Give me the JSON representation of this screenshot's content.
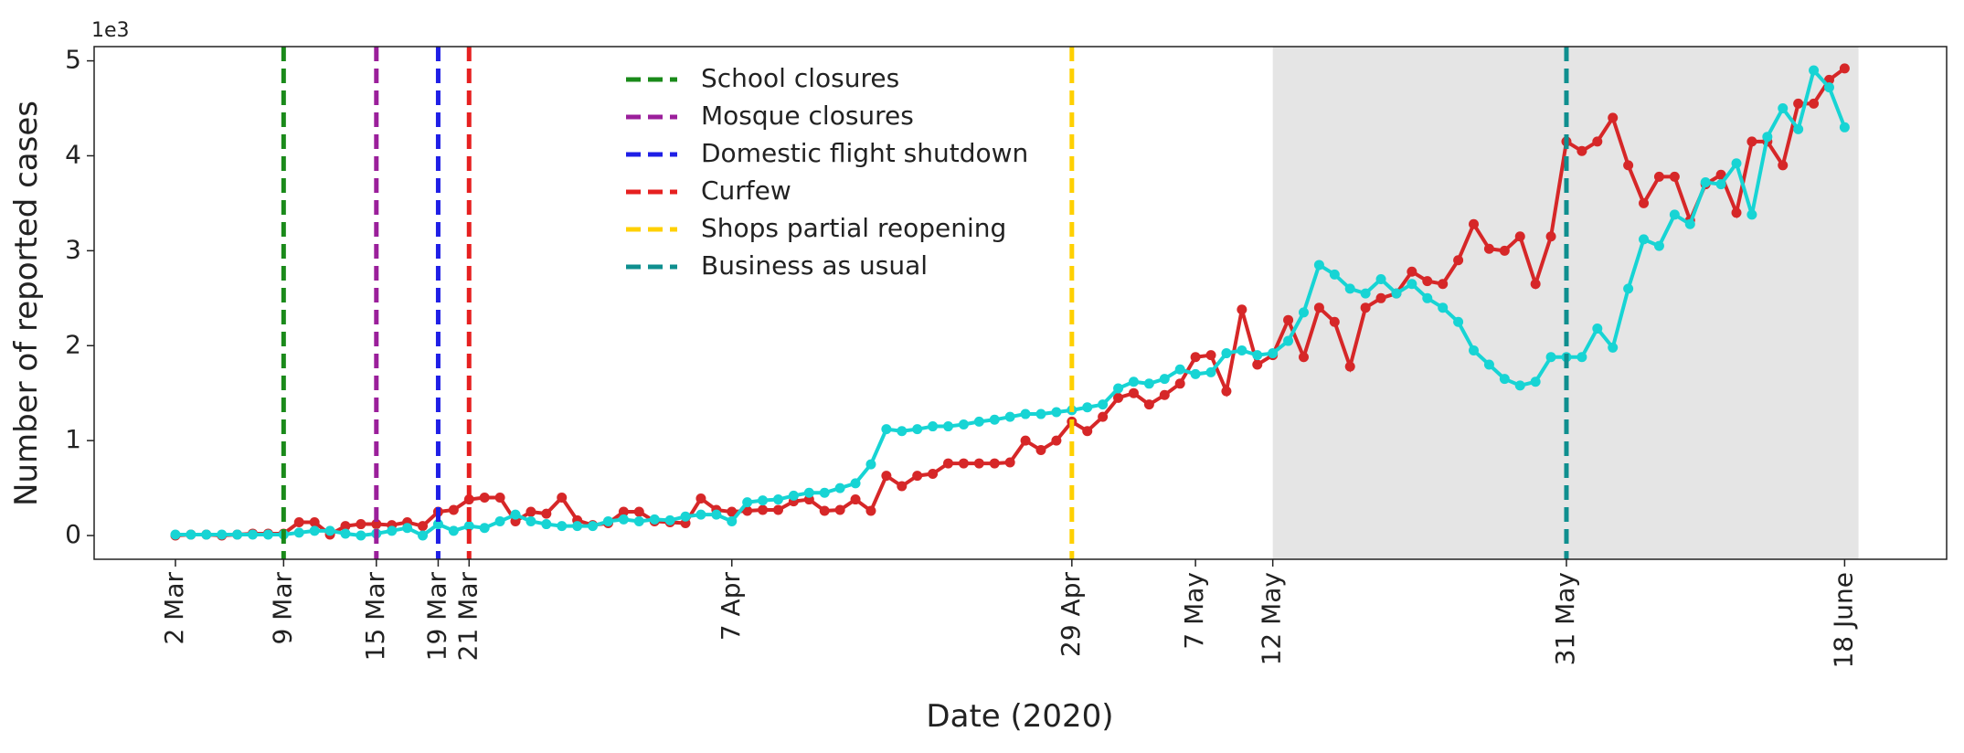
{
  "chart_data": {
    "type": "line",
    "y_label": "Number of reported cases",
    "x_label": "Date (2020)",
    "y_offset_label": "1e3",
    "categories": [
      "2 Mar",
      null,
      null,
      null,
      null,
      null,
      null,
      "9 Mar",
      null,
      null,
      null,
      null,
      null,
      "15 Mar",
      null,
      null,
      null,
      "19 Mar",
      null,
      "21 Mar",
      null,
      null,
      null,
      null,
      null,
      null,
      null,
      null,
      null,
      null,
      null,
      null,
      null,
      null,
      null,
      null,
      "7 Apr",
      null,
      null,
      null,
      null,
      null,
      null,
      null,
      null,
      null,
      null,
      null,
      null,
      null,
      null,
      null,
      null,
      null,
      null,
      null,
      null,
      null,
      "29 Apr",
      null,
      null,
      null,
      null,
      null,
      null,
      null,
      "7 May",
      null,
      null,
      null,
      null,
      "12 May",
      null,
      null,
      null,
      null,
      null,
      null,
      null,
      null,
      null,
      null,
      null,
      null,
      null,
      null,
      null,
      null,
      null,
      null,
      "31 May",
      null,
      null,
      null,
      null,
      null,
      null,
      null,
      null,
      null,
      null,
      null,
      null,
      null,
      null,
      null,
      null,
      null,
      "18 June"
    ],
    "series": [
      {
        "color": "#d62728",
        "values": [
          0,
          0.01,
          0.01,
          0,
          0.01,
          0.02,
          0.02,
          0.02,
          0.14,
          0.14,
          0.01,
          0.1,
          0.12,
          0.12,
          0.11,
          0.14,
          0.1,
          0.25,
          0.27,
          0.38,
          0.4,
          0.4,
          0.15,
          0.25,
          0.23,
          0.4,
          0.16,
          0.11,
          0.13,
          0.25,
          0.25,
          0.15,
          0.14,
          0.13,
          0.39,
          0.27,
          0.25,
          0.26,
          0.27,
          0.27,
          0.36,
          0.38,
          0.26,
          0.27,
          0.38,
          0.26,
          0.63,
          0.52,
          0.63,
          0.65,
          0.76,
          0.76,
          0.76,
          0.76,
          0.77,
          1.0,
          0.9,
          1.0,
          1.2,
          1.1,
          1.25,
          1.45,
          1.5,
          1.38,
          1.48,
          1.6,
          1.88,
          1.9,
          1.52,
          2.38,
          1.8,
          1.9,
          2.27,
          1.88,
          2.4,
          2.25,
          1.78,
          2.4,
          2.5,
          2.55,
          2.78,
          2.68,
          2.65,
          2.9,
          3.28,
          3.02,
          3.0,
          3.15,
          2.65,
          3.15,
          4.15,
          4.05,
          4.15,
          4.4,
          3.9,
          3.5,
          3.78,
          3.78,
          3.32,
          3.7,
          3.8,
          3.4,
          4.15,
          4.15,
          3.9,
          4.55,
          4.55,
          4.8,
          4.92
        ]
      },
      {
        "color": "#17d4d4",
        "values": [
          0.01,
          0.01,
          0.01,
          0.01,
          0.01,
          0.01,
          0.01,
          0.01,
          0.03,
          0.05,
          0.05,
          0.02,
          0,
          0.02,
          0.05,
          0.08,
          0,
          0.12,
          0.05,
          0.1,
          0.08,
          0.15,
          0.22,
          0.15,
          0.12,
          0.1,
          0.1,
          0.1,
          0.15,
          0.17,
          0.15,
          0.17,
          0.16,
          0.2,
          0.22,
          0.22,
          0.15,
          0.35,
          0.37,
          0.38,
          0.42,
          0.45,
          0.45,
          0.5,
          0.55,
          0.75,
          1.12,
          1.1,
          1.12,
          1.15,
          1.15,
          1.17,
          1.2,
          1.22,
          1.25,
          1.28,
          1.28,
          1.3,
          1.32,
          1.35,
          1.38,
          1.55,
          1.62,
          1.6,
          1.65,
          1.75,
          1.7,
          1.72,
          1.92,
          1.95,
          1.9,
          1.92,
          2.05,
          2.35,
          2.85,
          2.75,
          2.6,
          2.55,
          2.7,
          2.55,
          2.65,
          2.5,
          2.4,
          2.25,
          1.95,
          1.8,
          1.65,
          1.58,
          1.62,
          1.88,
          1.88,
          1.88,
          2.18,
          1.98,
          2.6,
          3.12,
          3.05,
          3.38,
          3.28,
          3.72,
          3.7,
          3.92,
          3.38,
          4.2,
          4.5,
          4.28,
          4.9,
          4.72,
          4.3
        ]
      }
    ],
    "events": [
      {
        "name": "School closures",
        "color": "#1a8a1a",
        "at": "9 Mar"
      },
      {
        "name": "Mosque closures",
        "color": "#9b1f9b",
        "at": "15 Mar"
      },
      {
        "name": "Domestic flight shutdown",
        "color": "#1f1fe6",
        "at": "19 Mar"
      },
      {
        "name": "Curfew",
        "color": "#e62020",
        "at": "21 Mar"
      },
      {
        "name": "Shops partial reopening",
        "color": "#ffd000",
        "at": "29 Apr"
      },
      {
        "name": "Business as usual",
        "color": "#0f8f8f",
        "at": "31 May"
      }
    ],
    "shade_from": "12 May",
    "ylim": [
      -0.25,
      5.15
    ],
    "yticks": [
      0,
      1,
      2,
      3,
      4,
      5
    ]
  }
}
